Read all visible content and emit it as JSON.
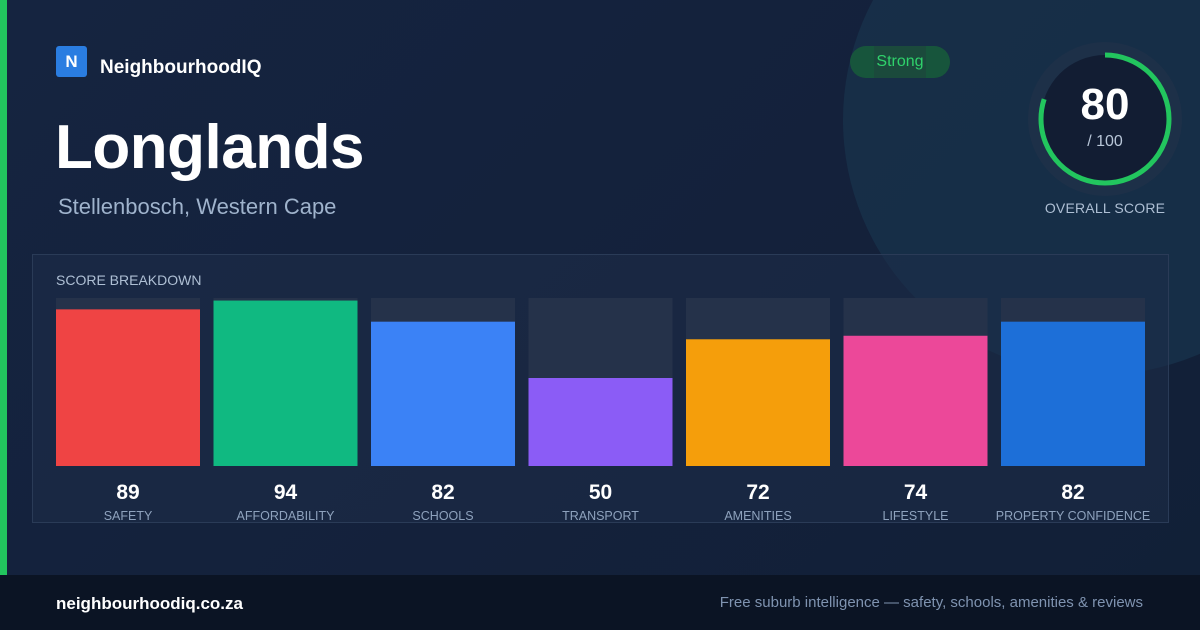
{
  "brand": {
    "logo_letter": "N",
    "name": "NeighbourhoodIQ"
  },
  "header": {
    "title": "Longlands",
    "location": "Stellenbosch, Western Cape",
    "badge": "Strong"
  },
  "overall": {
    "value": "80",
    "max_label": "/ 100",
    "label": "OVERALL SCORE",
    "fraction": 0.8,
    "ring_color": "#22c55e"
  },
  "panel": {
    "title": "SCORE BREAKDOWN"
  },
  "chart_data": {
    "type": "bar",
    "title": "SCORE BREAKDOWN",
    "ylim": [
      0,
      100
    ],
    "categories": [
      "SAFETY",
      "AFFORDABILITY",
      "SCHOOLS",
      "TRANSPORT",
      "AMENITIES",
      "LIFESTYLE",
      "PROPERTY CONFIDENCE"
    ],
    "values": [
      89,
      94,
      82,
      50,
      72,
      74,
      82
    ],
    "colors": [
      "#ef4444",
      "#10b981",
      "#3b82f6",
      "#8b5cf6",
      "#f59e0b",
      "#ec4899",
      "#1d6fd8"
    ],
    "grid": false
  },
  "footer": {
    "url": "neighbourhoodiq.co.za",
    "tagline": "Free suburb intelligence — safety, schools, amenities & reviews"
  },
  "colors": {
    "accent": "#22c55e",
    "background": "#13203a",
    "footer": "#0b1424",
    "track": "#25324a"
  }
}
